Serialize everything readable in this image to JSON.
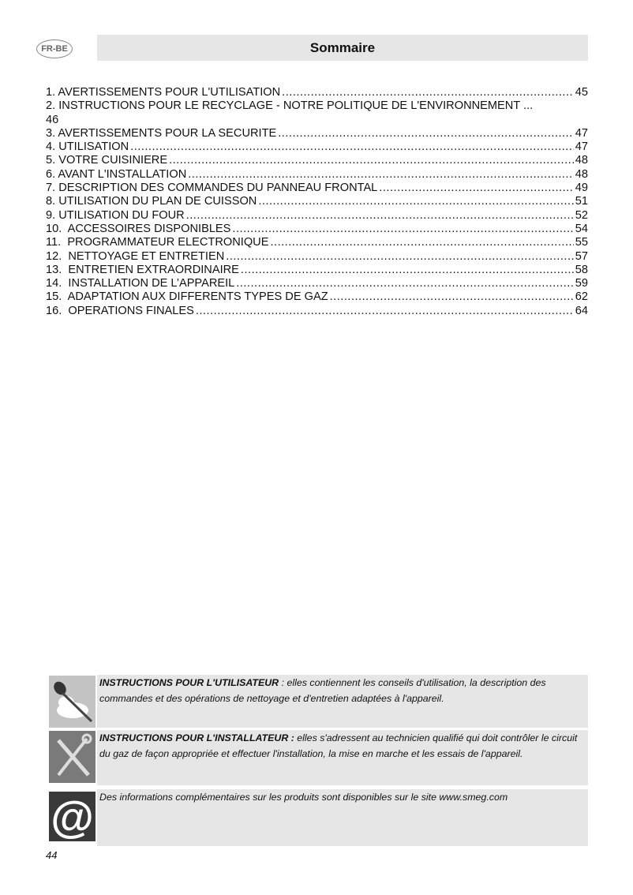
{
  "header": {
    "lang_badge": "FR-BE",
    "title": "Sommaire"
  },
  "toc": [
    {
      "title": "1. AVERTISSEMENTS POUR L'UTILISATION",
      "page": "45"
    },
    {
      "title": "2. INSTRUCTIONS POUR LE RECYCLAGE - NOTRE POLITIQUE DE L'ENVIRONNEMENT ...",
      "page": "46"
    },
    {
      "title": "3. AVERTISSEMENTS POUR LA SECURITE",
      "page": "47"
    },
    {
      "title": "4. UTILISATION",
      "page": "47"
    },
    {
      "title": "5. VOTRE CUISINIERE",
      "page": "48"
    },
    {
      "title": "6. AVANT L'INSTALLATION",
      "page": "48"
    },
    {
      "title": "7. DESCRIPTION DES COMMANDES DU PANNEAU FRONTAL",
      "page": "49"
    },
    {
      "title": "8. UTILISATION DU PLAN DE CUISSON",
      "page": "51"
    },
    {
      "title": "9. UTILISATION DU FOUR",
      "page": "52"
    },
    {
      "title": "10.  ACCESSOIRES DISPONIBLES",
      "page": "54"
    },
    {
      "title": "11.  PROGRAMMATEUR ELECTRONIQUE",
      "page": "55"
    },
    {
      "title": "12.  NETTOYAGE ET ENTRETIEN",
      "page": "57"
    },
    {
      "title": "13.  ENTRETIEN EXTRAORDINAIRE",
      "page": "58"
    },
    {
      "title": "14.  INSTALLATION DE L’APPAREIL",
      "page": "59"
    },
    {
      "title": "15.  ADAPTATION AUX DIFFERENTS TYPES DE GAZ",
      "page": "62"
    },
    {
      "title": "16.  OPERATIONS FINALES",
      "page": "64"
    }
  ],
  "notes": [
    {
      "icon": "spoon-chef-hat-icon",
      "bold": "INSTRUCTIONS POUR L'UTILISATEUR",
      "text": " : elles contiennent les conseils d'utilisation, la description des commandes et des opérations de nettoyage et d'entretien adaptées à l'appareil."
    },
    {
      "icon": "wrench-screwdriver-icon",
      "bold": "INSTRUCTIONS POUR L'INSTALLATEUR :",
      "text": " elles s'adressent au technicien qualifié qui doit contrôler le circuit du gaz de façon appropriée et effectuer l'installation, la mise en marche et les essais de l'appareil."
    },
    {
      "icon": "at-sign-icon",
      "bold": "",
      "text": "Des informations complémentaires sur les produits sont disponibles sur le site www.smeg.com"
    }
  ],
  "page_number": "44"
}
